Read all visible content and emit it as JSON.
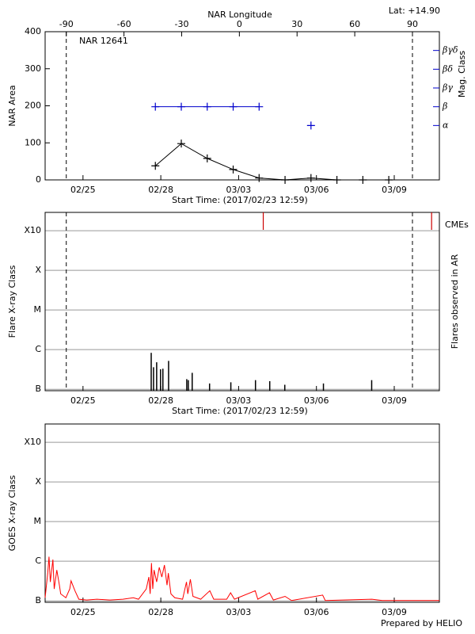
{
  "chart_data": [
    {
      "type": "line",
      "title": "NAR 12641",
      "annotation": "Lat: +14.90",
      "x_label": "Start Time: (2017/02/23 12:59)",
      "y_label": "NAR Area",
      "y2_label": "Mag. Class",
      "x2_label": "NAR Longitude",
      "x": [
        4.25,
        5.25,
        6.25,
        7.25,
        8.25,
        9.25,
        10.25,
        11.25,
        12.25,
        13.25
      ],
      "series": [
        {
          "color": "#000000",
          "values": [
            38,
            98,
            58,
            28,
            5,
            0,
            5,
            0,
            0,
            0
          ]
        },
        {
          "color": "#0000cc",
          "axis": "y2",
          "x": [
            4.25,
            5.25,
            6.25,
            7.25,
            8.25,
            9.25,
            10.25
          ],
          "values": [
            4,
            4,
            4,
            4,
            4,
            null,
            3
          ]
        }
      ],
      "xlim": [
        0,
        15.2
      ],
      "xticks": [
        {
          "value": 1.46,
          "label": "02/25"
        },
        {
          "value": 4.46,
          "label": "02/28"
        },
        {
          "value": 7.46,
          "label": "03/03"
        },
        {
          "value": 10.46,
          "label": "03/06"
        },
        {
          "value": 13.46,
          "label": "03/09"
        }
      ],
      "ylim": [
        0,
        400
      ],
      "yticks": [
        0,
        100,
        200,
        300,
        400
      ],
      "y2lim": [
        0.1,
        8
      ],
      "y2ticks": [
        {
          "value": 3,
          "label": "α"
        },
        {
          "value": 4,
          "label": "β"
        },
        {
          "value": 5,
          "label": "βγ"
        },
        {
          "value": 6,
          "label": "βδ"
        },
        {
          "value": 7,
          "label": "βγδ"
        }
      ],
      "x2lim": [
        -101,
        104
      ],
      "x2ticks": [
        -90,
        -60,
        -30,
        0,
        30,
        60,
        90
      ],
      "grid": false
    },
    {
      "type": "bar",
      "x_label": "Start Time: (2017/02/23 12:59)",
      "y_label": "Flare X-ray Class",
      "y2_label": "Flares observed in AR",
      "x": [
        4.09,
        4.18,
        4.3,
        4.45,
        4.54,
        4.76,
        5.46,
        5.52,
        5.67,
        6.34,
        7.16,
        8.11,
        8.66,
        9.24,
        10.73,
        12.59
      ],
      "values": [
        8.3e-07,
        3.6e-07,
        4.8e-07,
        3.2e-07,
        3.3e-07,
        5.2e-07,
        1.8e-07,
        1.7e-07,
        2.6e-07,
        1.4e-07,
        1.5e-07,
        1.7e-07,
        1.6e-07,
        1.3e-07,
        1.4e-07,
        1.7e-07
      ],
      "color": "#000000",
      "cmes": {
        "label": "CMEs",
        "color": "#cc0000",
        "x": [
          8.41,
          14.9
        ]
      },
      "xlim": [
        0,
        15.2
      ],
      "xticks": [
        {
          "value": 1.46,
          "label": "02/25"
        },
        {
          "value": 4.46,
          "label": "02/28"
        },
        {
          "value": 7.46,
          "label": "03/03"
        },
        {
          "value": 10.46,
          "label": "03/06"
        },
        {
          "value": 13.46,
          "label": "03/09"
        }
      ],
      "log_y": true,
      "ylim": [
        9.2e-08,
        0.0029
      ],
      "yticks": [
        {
          "value": 1e-07,
          "label": "B"
        },
        {
          "value": 1e-06,
          "label": "C"
        },
        {
          "value": 1e-05,
          "label": "M"
        },
        {
          "value": 0.0001,
          "label": "X"
        },
        {
          "value": 0.001,
          "label": "X10"
        }
      ],
      "grid": true
    },
    {
      "type": "line",
      "y_label": "GOES X-ray Class",
      "x": [
        0.0,
        0.1,
        0.15,
        0.2,
        0.3,
        0.35,
        0.45,
        0.55,
        0.6,
        0.8,
        0.95,
        1.0,
        1.15,
        1.3,
        1.6,
        2.0,
        2.5,
        3.0,
        3.4,
        3.6,
        3.9,
        4.0,
        4.05,
        4.1,
        4.15,
        4.2,
        4.3,
        4.4,
        4.5,
        4.6,
        4.7,
        4.75,
        4.85,
        5.0,
        5.3,
        5.45,
        5.5,
        5.6,
        5.7,
        6.0,
        6.35,
        6.5,
        7.0,
        7.15,
        7.3,
        8.1,
        8.2,
        8.65,
        8.8,
        9.25,
        9.5,
        10.7,
        10.8,
        12.6,
        13.0,
        15.2
      ],
      "series": [
        {
          "color": "#ff0000",
          "values": [
            1.2e-07,
            5e-07,
            1.3e-06,
            3e-07,
            1.1e-06,
            2e-07,
            6e-07,
            2.5e-07,
            1.5e-07,
            1.2e-07,
            2e-07,
            3.2e-07,
            1.8e-07,
            1.1e-07,
            1.05e-07,
            1.1e-07,
            1.05e-07,
            1.1e-07,
            1.2e-07,
            1.1e-07,
            2e-07,
            4e-07,
            1.5e-07,
            9e-07,
            2e-07,
            6e-07,
            3e-07,
            7e-07,
            4e-07,
            8e-07,
            2.5e-07,
            5e-07,
            1.5e-07,
            1.2e-07,
            1.1e-07,
            3e-07,
            1.5e-07,
            3.5e-07,
            1.3e-07,
            1.1e-07,
            1.8e-07,
            1.1e-07,
            1.1e-07,
            1.6e-07,
            1.1e-07,
            1.8e-07,
            1.1e-07,
            1.6e-07,
            1.05e-07,
            1.3e-07,
            1.02e-07,
            1.4e-07,
            1.02e-07,
            1.1e-07,
            1.02e-07,
            1.02e-07
          ]
        }
      ],
      "xlim": [
        0,
        15.2
      ],
      "xticks": [
        {
          "value": 1.46,
          "label": "02/25"
        },
        {
          "value": 4.46,
          "label": "02/28"
        },
        {
          "value": 7.46,
          "label": "03/03"
        },
        {
          "value": 10.46,
          "label": "03/06"
        },
        {
          "value": 13.46,
          "label": "03/09"
        }
      ],
      "log_y": true,
      "ylim": [
        9.2e-08,
        0.0029
      ],
      "yticks": [
        {
          "value": 1e-07,
          "label": "B"
        },
        {
          "value": 1e-06,
          "label": "C"
        },
        {
          "value": 1e-05,
          "label": "M"
        },
        {
          "value": 0.0001,
          "label": "X"
        },
        {
          "value": 0.001,
          "label": "X10"
        }
      ],
      "grid": true
    }
  ],
  "footer": "Prepared by HELIO"
}
